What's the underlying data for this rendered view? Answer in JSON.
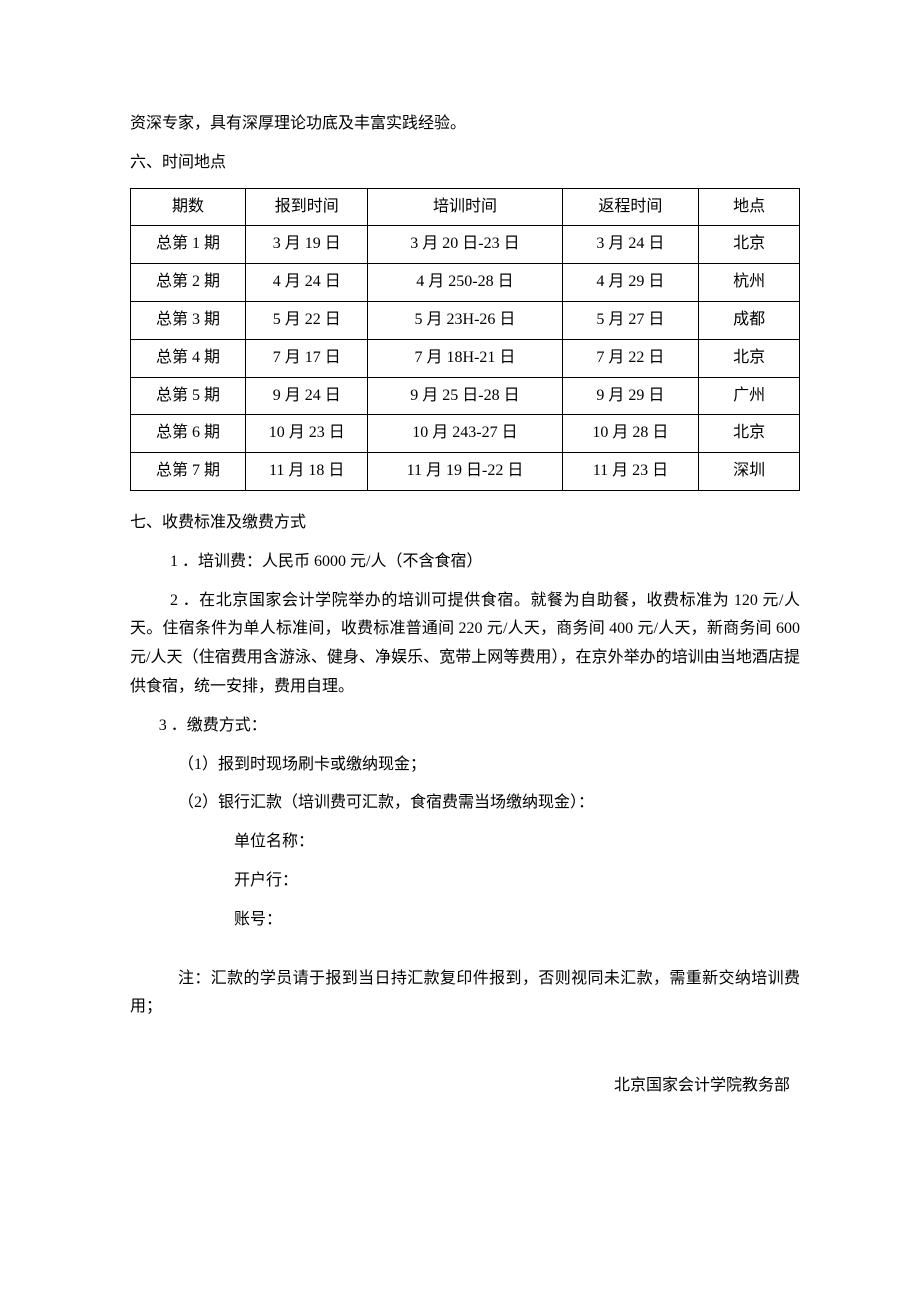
{
  "intro": "资深专家，具有深厚理论功底及丰富实践经验。",
  "section6": {
    "title": "六、时间地点",
    "table": {
      "columns": [
        "期数",
        "报到时间",
        "培训时间",
        "返程时间",
        "地点"
      ],
      "rows": [
        [
          "总第 1 期",
          "3 月 19 日",
          "3 月 20 日-23 日",
          "3 月 24 日",
          "北京"
        ],
        [
          "总第 2 期",
          "4 月 24 日",
          "4 月 250-28 日",
          "4 月 29 日",
          "杭州"
        ],
        [
          "总第 3 期",
          "5 月 22 日",
          "5 月 23H-26 日",
          "5 月 27 日",
          "成都"
        ],
        [
          "总第 4 期",
          "7 月 17 日",
          "7 月 18H-21 日",
          "7 月 22 日",
          "北京"
        ],
        [
          "总第 5 期",
          "9 月 24 日",
          "9 月 25 日-28 日",
          "9 月 29 日",
          "广州"
        ],
        [
          "总第 6 期",
          "10 月 23 日",
          "10 月 243-27 日",
          "10 月 28 日",
          "北京"
        ],
        [
          "总第 7 期",
          "11 月 18 日",
          "11 月 19 日-22 日",
          "11 月 23 日",
          "深圳"
        ]
      ]
    }
  },
  "section7": {
    "title": "七、收费标准及缴费方式",
    "item1": "1 ．培训费：人民币 6000 元/人（不含食宿）",
    "item2": "2 ．在北京国家会计学院举办的培训可提供食宿。就餐为自助餐，收费标准为 120 元/人天。住宿条件为单人标准间，收费标准普通间 220 元/人天，商务间 400 元/人天，新商务间 600元/人天（住宿费用含游泳、健身、净娱乐、宽带上网等费用），在京外举办的培训由当地酒店提供食宿，统一安排，费用自理。",
    "item3": "3 ．缴费方式：",
    "sub1": "（1）报到时现场刷卡或缴纳现金；",
    "sub2": "（2）银行汇款（培训费可汇款，食宿费需当场缴纳现金）：",
    "field1": "单位名称：",
    "field2": "开户行：",
    "field3": "账号：",
    "note": "注：汇款的学员请于报到当日持汇款复印件报到，否则视同未汇款，需重新交纳培训费用；"
  },
  "signature": "北京国家会计学院教务部"
}
